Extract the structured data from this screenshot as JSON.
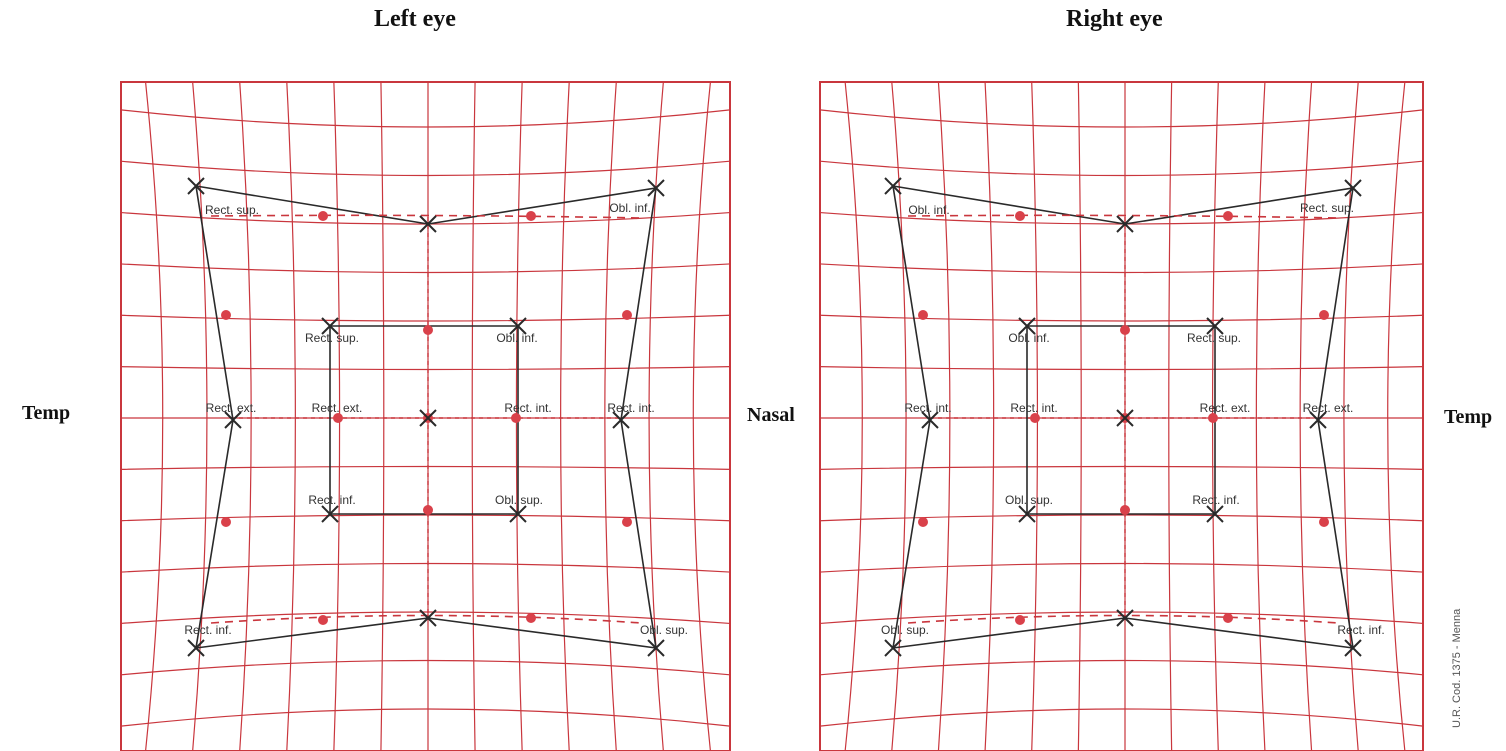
{
  "titles": {
    "left": "Left eye",
    "right": "Right eye"
  },
  "sides": {
    "left": "Temp",
    "center": "Nasal",
    "right": "Temp"
  },
  "code": "U.R. Cod. 1375 - Menna",
  "colors": {
    "grid": "#c9363d",
    "ink": "#2a2a2a",
    "dot": "#d9414a"
  },
  "charts": [
    {
      "eye": "left",
      "labels": {
        "outer_tl": "Rect. sup.",
        "outer_tr": "Obl. inf.",
        "outer_bl": "Rect. inf.",
        "outer_br": "Obl. sup.",
        "outer_ml": "Rect. ext.",
        "outer_mr": "Rect. int.",
        "inner_tl": "Rect. sup.",
        "inner_tr": "Obl. inf.",
        "inner_bl": "Rect. inf.",
        "inner_br": "Obl. sup.",
        "inner_ml": "Rect. ext.",
        "inner_mr": "Rect. int."
      }
    },
    {
      "eye": "right",
      "labels": {
        "outer_tl": "Obl. inf.",
        "outer_tr": "Rect. sup.",
        "outer_bl": "Obl. sup.",
        "outer_br": "Rect. inf.",
        "outer_ml": "Rect. int.",
        "outer_mr": "Rect. ext.",
        "inner_tl": "Obl. inf.",
        "inner_tr": "Rect. sup.",
        "inner_bl": "Obl. sup.",
        "inner_br": "Rect. inf.",
        "inner_ml": "Rect. int.",
        "inner_mr": "Rect. ext."
      }
    }
  ]
}
